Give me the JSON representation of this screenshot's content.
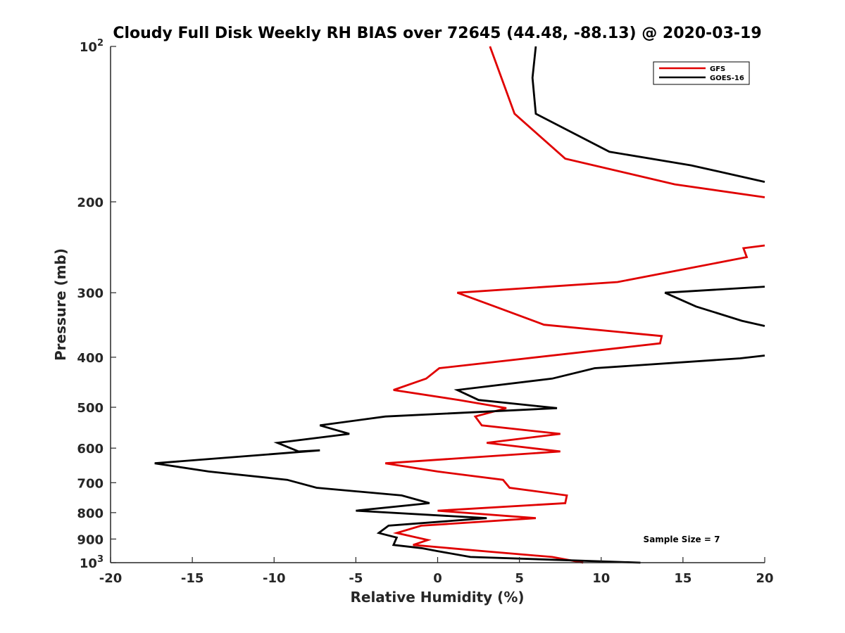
{
  "chart_data": {
    "type": "line",
    "title": "Cloudy Full Disk Weekly RH BIAS over 72645 (44.48, -88.13) @ 2020-03-19",
    "xlabel": "Relative Humidity (%)",
    "ylabel": "Pressure (mb)",
    "xlim": [
      -20,
      20
    ],
    "ylim": [
      100,
      1000
    ],
    "y_scale": "log",
    "y_reversed": true,
    "x_ticks": [
      "-20",
      "-15",
      "-10",
      "-5",
      "0",
      "5",
      "10",
      "15",
      "20"
    ],
    "y_ticks": [
      {
        "value": 100,
        "base": "10",
        "exp": "2"
      },
      {
        "value": 200,
        "label": "200"
      },
      {
        "value": 300,
        "label": "300"
      },
      {
        "value": 400,
        "label": "400"
      },
      {
        "value": 500,
        "label": "500"
      },
      {
        "value": 600,
        "label": "600"
      },
      {
        "value": 700,
        "label": "700"
      },
      {
        "value": 800,
        "label": "800"
      },
      {
        "value": 900,
        "label": "900"
      },
      {
        "value": 1000,
        "base": "10",
        "exp": "3"
      }
    ],
    "legend_position": "top-right",
    "grid": false,
    "annotation": "Sample Size = 7",
    "series": [
      {
        "name": "GFS",
        "color": "#e00000",
        "points": [
          [
            3.2,
            100
          ],
          [
            3.9,
            115
          ],
          [
            4.7,
            135
          ],
          [
            7.8,
            165
          ],
          [
            14.5,
            185
          ],
          [
            20.0,
            196
          ],
          null,
          [
            20.0,
            243
          ],
          [
            18.7,
            246
          ],
          [
            18.9,
            256
          ],
          [
            11.0,
            286
          ],
          [
            1.2,
            300
          ],
          [
            3.5,
            319
          ],
          [
            6.5,
            346
          ],
          [
            13.7,
            364
          ],
          [
            13.6,
            376
          ],
          [
            0.1,
            420
          ],
          [
            -0.7,
            440
          ],
          [
            -2.7,
            463
          ],
          [
            1.3,
            484
          ],
          [
            4.2,
            502
          ],
          [
            2.3,
            521
          ],
          [
            2.7,
            542
          ],
          [
            7.5,
            563
          ],
          [
            3.0,
            586
          ],
          [
            7.5,
            609
          ],
          [
            -3.2,
            642
          ],
          [
            0.0,
            666
          ],
          [
            4.0,
            691
          ],
          [
            4.4,
            716
          ],
          [
            7.9,
            741
          ],
          [
            7.8,
            767
          ],
          [
            0.0,
            793
          ],
          [
            6.0,
            820
          ],
          [
            -1.0,
            848
          ],
          [
            -2.5,
            876
          ],
          [
            -0.6,
            904
          ],
          [
            -1.5,
            924
          ],
          [
            2.8,
            950
          ],
          [
            7.0,
            975
          ],
          [
            8.9,
            1000
          ]
        ]
      },
      {
        "name": "GOES-16",
        "color": "#000000",
        "points": [
          [
            6.0,
            100
          ],
          [
            5.8,
            115
          ],
          [
            6.0,
            135
          ],
          [
            10.5,
            160
          ],
          [
            15.5,
            170
          ],
          [
            20.0,
            183
          ],
          null,
          [
            20.0,
            292
          ],
          [
            13.9,
            300
          ],
          [
            15.8,
            319
          ],
          [
            18.6,
            340
          ],
          [
            20.0,
            348
          ],
          null,
          [
            20.0,
            397
          ],
          [
            18.5,
            402
          ],
          [
            9.6,
            420
          ],
          [
            7.0,
            440
          ],
          [
            1.2,
            463
          ],
          [
            2.5,
            484
          ],
          [
            7.3,
            502
          ],
          [
            -3.2,
            521
          ],
          [
            -7.2,
            542
          ],
          [
            -5.4,
            563
          ],
          [
            -9.8,
            586
          ],
          [
            -8.5,
            609
          ],
          [
            -7.2,
            606
          ],
          [
            -17.3,
            642
          ],
          [
            -14.0,
            666
          ],
          [
            -9.2,
            691
          ],
          [
            -7.4,
            716
          ],
          [
            -2.2,
            741
          ],
          [
            -0.5,
            767
          ],
          [
            -5.0,
            793
          ],
          [
            3.0,
            820
          ],
          [
            -3.0,
            848
          ],
          [
            -3.6,
            876
          ],
          [
            -2.5,
            894
          ],
          [
            -2.7,
            924
          ],
          [
            -1.0,
            937
          ],
          [
            0.0,
            950
          ],
          [
            2.0,
            975
          ],
          [
            12.4,
            1000
          ]
        ]
      }
    ]
  }
}
